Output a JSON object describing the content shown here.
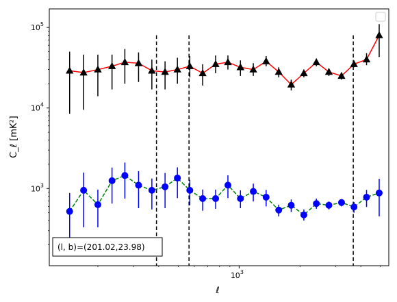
{
  "chart_data": {
    "type": "scatter",
    "x_scale": "log",
    "y_scale": "log",
    "xlim": [
      115,
      5500
    ],
    "ylim": [
      110,
      170000
    ],
    "xlabel": "ℓ",
    "ylabel": "C_ℓ  [mK²]",
    "x_ticks": [
      {
        "value": 1000,
        "base": "10",
        "exp": "3"
      }
    ],
    "y_ticks": [
      {
        "value": 1000,
        "base": "10",
        "exp": "3"
      },
      {
        "value": 10000,
        "base": "10",
        "exp": "4"
      },
      {
        "value": 100000,
        "base": "10",
        "exp": "5"
      }
    ],
    "vlines": [
      390,
      565,
      3670
    ],
    "annotation": "(l, b)=(201.02,23.98)",
    "legend_position": "upper right",
    "series": [
      {
        "marker": "triangle",
        "marker_color": "#000000",
        "line_color": "#ff0000",
        "line_style": "solid",
        "x": [
          145,
          170,
          200,
          235,
          272,
          318,
          370,
          430,
          495,
          570,
          660,
          765,
          880,
          1015,
          1175,
          1360,
          1570,
          1810,
          2090,
          2410,
          2780,
          3210,
          3700,
          4270,
          4930
        ],
        "y": [
          29000,
          27500,
          30000,
          33000,
          37000,
          36000,
          29000,
          28000,
          30000,
          33000,
          27000,
          35000,
          37000,
          32000,
          30000,
          38000,
          28000,
          19500,
          27000,
          37000,
          28000,
          25000,
          35000,
          40000,
          80000
        ],
        "yerr_low": [
          8500,
          9500,
          14000,
          17000,
          20000,
          21000,
          17000,
          17000,
          20000,
          24000,
          19000,
          27000,
          30000,
          25000,
          25000,
          33000,
          24000,
          16500,
          24000,
          33000,
          25000,
          22500,
          32000,
          34000,
          43000
        ],
        "yerr_high": [
          50000,
          46000,
          46000,
          46000,
          54000,
          49000,
          40000,
          38000,
          42000,
          44000,
          35000,
          45000,
          45000,
          39000,
          36000,
          44000,
          32000,
          22500,
          30000,
          41000,
          31000,
          27500,
          38000,
          48000,
          110000
        ]
      },
      {
        "marker": "circle",
        "marker_color": "#0000ff",
        "line_color": "#008000",
        "line_style": "dashed",
        "x": [
          145,
          170,
          200,
          235,
          272,
          318,
          370,
          430,
          495,
          570,
          660,
          765,
          880,
          1015,
          1175,
          1360,
          1570,
          1810,
          2090,
          2410,
          2780,
          3210,
          3700,
          4270,
          4930
        ],
        "y": [
          520,
          950,
          630,
          1250,
          1450,
          1100,
          950,
          1050,
          1350,
          950,
          750,
          750,
          1100,
          750,
          920,
          780,
          540,
          620,
          470,
          650,
          620,
          670,
          590,
          780,
          880
        ],
        "yerr_low": [
          200,
          330,
          330,
          650,
          750,
          570,
          550,
          570,
          760,
          620,
          530,
          560,
          760,
          570,
          690,
          600,
          450,
          510,
          400,
          560,
          550,
          600,
          500,
          590,
          450
        ],
        "yerr_high": [
          880,
          1580,
          970,
          1820,
          2100,
          1640,
          1330,
          1560,
          1830,
          1280,
          970,
          970,
          1460,
          950,
          1150,
          960,
          630,
          730,
          550,
          750,
          690,
          740,
          680,
          960,
          1320
        ]
      }
    ]
  }
}
